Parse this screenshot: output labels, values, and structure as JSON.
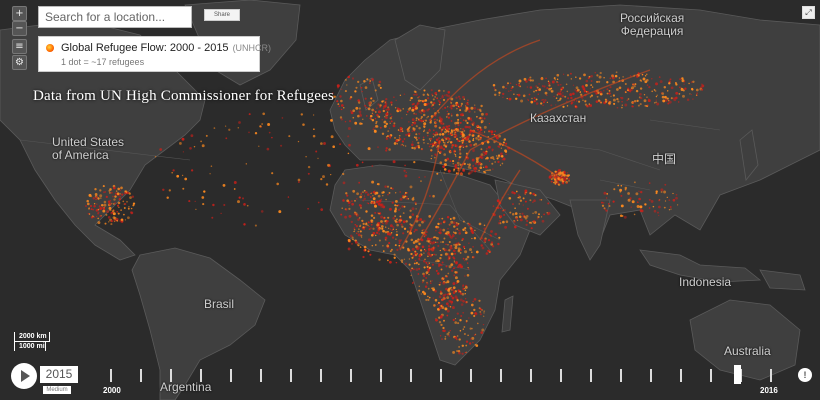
{
  "search": {
    "placeholder": "Search for a location..."
  },
  "share_label": "Share",
  "controls": {
    "zoom_in": "+",
    "zoom_out": "−",
    "layers": "≡",
    "settings": "⚙"
  },
  "legend": {
    "title": "Global Refugee Flow: 2000 - 2015",
    "source": "(UNHCR)",
    "subtitle": "1 dot = ~17 refugees",
    "dot_color": "#ff6a00"
  },
  "caption": "Data from UN High Commissioner for Refugees",
  "labels": {
    "usa": "United States\nof America",
    "russia": "Российская\nФедерация",
    "kazakhstan": "Казахстан",
    "china": "中国",
    "brasil": "Brasil",
    "indonesia": "Indonesia",
    "australia": "Australia",
    "argentina": "Argentina"
  },
  "scale": {
    "km": "2000 km",
    "mi": "1000 mi"
  },
  "timeline": {
    "year": "2015",
    "speed": "Medium",
    "start_label": "2000",
    "end_label": "2016",
    "progress": 0.95
  },
  "colors": {
    "flow_bright": "#ff8a1e",
    "flow_dark": "#c8201a",
    "land": "#3f3f3f",
    "ocean": "#2b2b2b"
  },
  "icons": {
    "fullscreen": "expand-icon",
    "info": "info-icon"
  }
}
